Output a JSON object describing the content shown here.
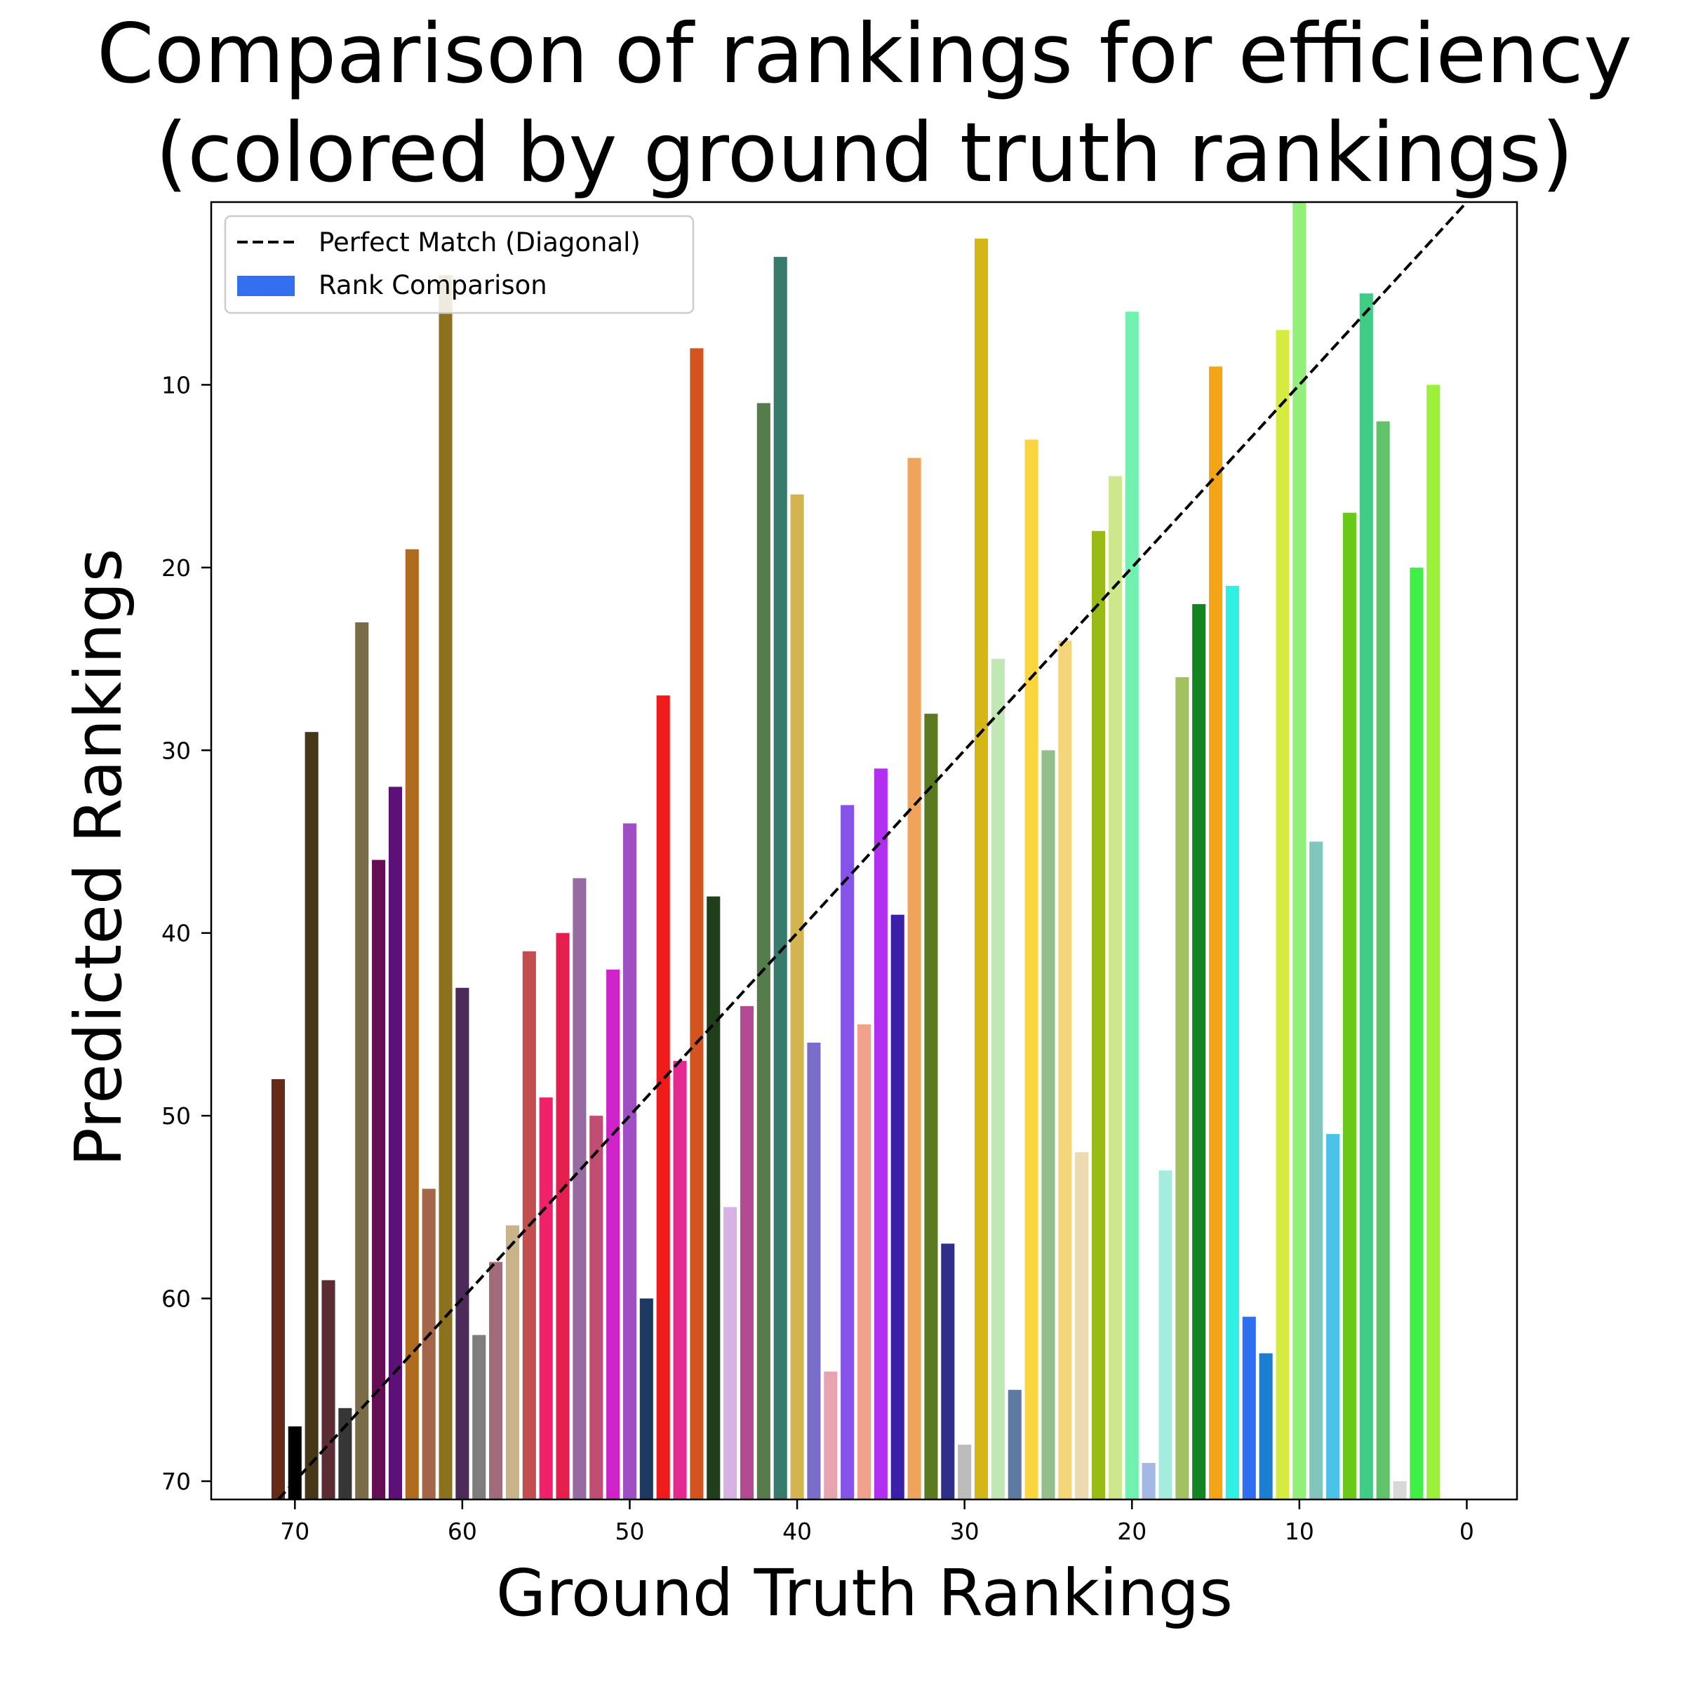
{
  "chart_data": {
    "type": "bar",
    "title": [
      "Comparison of rankings for efficiency",
      "(colored by ground truth rankings)"
    ],
    "xlabel": "Ground Truth Rankings",
    "ylabel": "Predicted Rankings",
    "xlim": [
      75,
      -3
    ],
    "ylim": [
      71,
      0
    ],
    "x_inverted": true,
    "y_inverted": true,
    "xticks": [
      70,
      60,
      50,
      40,
      30,
      20,
      10,
      0
    ],
    "yticks": [
      10,
      20,
      30,
      40,
      50,
      60,
      70
    ],
    "grid": false,
    "legend": {
      "placement": "top-left",
      "entries": [
        {
          "label": "Perfect Match (Diagonal)",
          "style": "dashed-line",
          "color": "#000000"
        },
        {
          "label": "Rank Comparison",
          "style": "bar",
          "color": "#3370f0"
        }
      ]
    },
    "diagonal": {
      "from": [
        71,
        71
      ],
      "to": [
        0,
        0
      ],
      "style": "dashed",
      "color": "#000000"
    },
    "bars": [
      {
        "x": 71,
        "y": 48,
        "color": "#652a18"
      },
      {
        "x": 70,
        "y": 67,
        "color": "#000000"
      },
      {
        "x": 69,
        "y": 29,
        "color": "#453717"
      },
      {
        "x": 68,
        "y": 59,
        "color": "#5b2c33"
      },
      {
        "x": 67,
        "y": 66,
        "color": "#363636"
      },
      {
        "x": 66,
        "y": 23,
        "color": "#7a6c48"
      },
      {
        "x": 65,
        "y": 36,
        "color": "#650e56"
      },
      {
        "x": 64,
        "y": 32,
        "color": "#5e1079"
      },
      {
        "x": 63,
        "y": 19,
        "color": "#b06c1e"
      },
      {
        "x": 62,
        "y": 54,
        "color": "#a4654a"
      },
      {
        "x": 61,
        "y": 4,
        "color": "#8c721e"
      },
      {
        "x": 60,
        "y": 43,
        "color": "#4c2a5a"
      },
      {
        "x": 59,
        "y": 62,
        "color": "#7d7d7d"
      },
      {
        "x": 58,
        "y": 58,
        "color": "#a26b7a"
      },
      {
        "x": 57,
        "y": 56,
        "color": "#c9b489"
      },
      {
        "x": 56,
        "y": 41,
        "color": "#c24f4f"
      },
      {
        "x": 55,
        "y": 49,
        "color": "#f0206a"
      },
      {
        "x": 54,
        "y": 40,
        "color": "#e41e4d"
      },
      {
        "x": 53,
        "y": 37,
        "color": "#956ba2"
      },
      {
        "x": 52,
        "y": 50,
        "color": "#c14c72"
      },
      {
        "x": 51,
        "y": 42,
        "color": "#d022c9"
      },
      {
        "x": 50,
        "y": 34,
        "color": "#9d4fc3"
      },
      {
        "x": 49,
        "y": 60,
        "color": "#1f3a62"
      },
      {
        "x": 48,
        "y": 27,
        "color": "#ef1a1a"
      },
      {
        "x": 47,
        "y": 47,
        "color": "#e42a92"
      },
      {
        "x": 46,
        "y": 8,
        "color": "#d3541e"
      },
      {
        "x": 45,
        "y": 38,
        "color": "#1f3f1a"
      },
      {
        "x": 44,
        "y": 55,
        "color": "#d7b0e4"
      },
      {
        "x": 43,
        "y": 44,
        "color": "#b44a94"
      },
      {
        "x": 42,
        "y": 11,
        "color": "#567c4b"
      },
      {
        "x": 41,
        "y": 3,
        "color": "#367a6c"
      },
      {
        "x": 40,
        "y": 16,
        "color": "#d3b44e"
      },
      {
        "x": 39,
        "y": 46,
        "color": "#7a6cc9"
      },
      {
        "x": 38,
        "y": 64,
        "color": "#e7a4af"
      },
      {
        "x": 37,
        "y": 33,
        "color": "#8653ea"
      },
      {
        "x": 36,
        "y": 45,
        "color": "#f0a38a"
      },
      {
        "x": 35,
        "y": 31,
        "color": "#b22ef0"
      },
      {
        "x": 34,
        "y": 39,
        "color": "#3a1fa8"
      },
      {
        "x": 33,
        "y": 14,
        "color": "#f0a35a"
      },
      {
        "x": 32,
        "y": 28,
        "color": "#5b7a1f"
      },
      {
        "x": 31,
        "y": 57,
        "color": "#2e2f8a"
      },
      {
        "x": 30,
        "y": 68,
        "color": "#bcbcbc"
      },
      {
        "x": 29,
        "y": 2,
        "color": "#d5b616"
      },
      {
        "x": 28,
        "y": 25,
        "color": "#bfe8b4"
      },
      {
        "x": 27,
        "y": 65,
        "color": "#5c7aa4"
      },
      {
        "x": 26,
        "y": 13,
        "color": "#fad53e"
      },
      {
        "x": 25,
        "y": 30,
        "color": "#94bf8a"
      },
      {
        "x": 24,
        "y": 24,
        "color": "#f5d57a"
      },
      {
        "x": 23,
        "y": 52,
        "color": "#ecdab0"
      },
      {
        "x": 22,
        "y": 18,
        "color": "#9abb16"
      },
      {
        "x": 21,
        "y": 15,
        "color": "#cce88a"
      },
      {
        "x": 20,
        "y": 6,
        "color": "#72f0b0"
      },
      {
        "x": 19,
        "y": 69,
        "color": "#a2b9e6"
      },
      {
        "x": 18,
        "y": 53,
        "color": "#a3ecde"
      },
      {
        "x": 17,
        "y": 26,
        "color": "#a2c260"
      },
      {
        "x": 16,
        "y": 22,
        "color": "#148420"
      },
      {
        "x": 15,
        "y": 9,
        "color": "#f5a416"
      },
      {
        "x": 14,
        "y": 21,
        "color": "#30f0e4"
      },
      {
        "x": 13,
        "y": 61,
        "color": "#2e6ef0"
      },
      {
        "x": 12,
        "y": 63,
        "color": "#1b7ed0"
      },
      {
        "x": 11,
        "y": 7,
        "color": "#d5eb40"
      },
      {
        "x": 10,
        "y": 0,
        "color": "#92f07a"
      },
      {
        "x": 9,
        "y": 35,
        "color": "#80c6bd"
      },
      {
        "x": 8,
        "y": 51,
        "color": "#4dc2e8"
      },
      {
        "x": 7,
        "y": 17,
        "color": "#69c91a"
      },
      {
        "x": 6,
        "y": 5,
        "color": "#40cc84"
      },
      {
        "x": 5,
        "y": 12,
        "color": "#62c26a"
      },
      {
        "x": 4,
        "y": 70,
        "color": "#d8d8d8"
      },
      {
        "x": 3,
        "y": 20,
        "color": "#40f046"
      },
      {
        "x": 2,
        "y": 10,
        "color": "#9bf03a"
      }
    ]
  }
}
